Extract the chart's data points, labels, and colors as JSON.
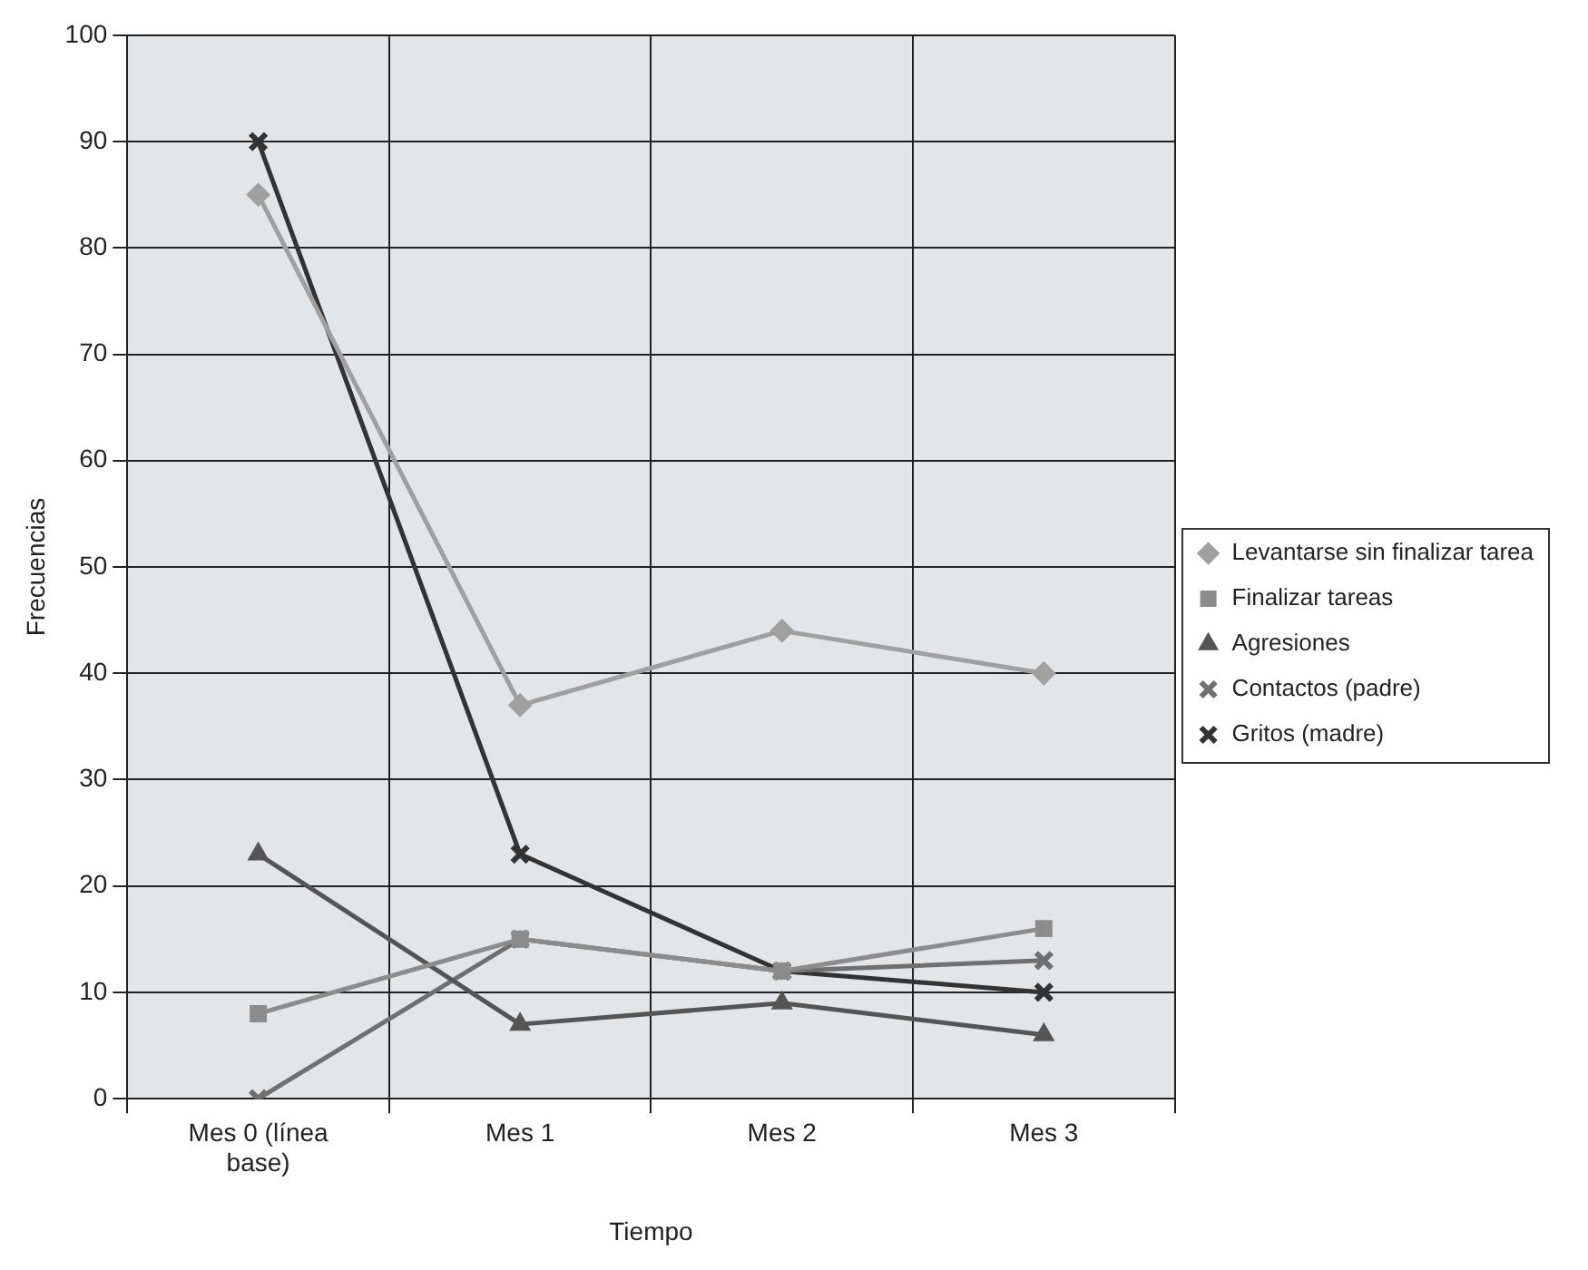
{
  "chart_data": {
    "type": "line",
    "xlabel": "Tiempo",
    "ylabel": "Frecuencias",
    "categories": [
      "Mes 0 (línea base)",
      "Mes 1",
      "Mes 2",
      "Mes 3"
    ],
    "series": [
      {
        "name": "Levantarse sin finalizar tarea",
        "color": "#a0a0a0",
        "marker": "diamond",
        "values": [
          85,
          37,
          44,
          40
        ]
      },
      {
        "name": "Finalizar tareas",
        "color": "#8c8c8c",
        "marker": "square",
        "values": [
          8,
          15,
          12,
          16
        ]
      },
      {
        "name": "Agresiones",
        "color": "#555555",
        "marker": "triangle",
        "values": [
          23,
          7,
          9,
          6
        ]
      },
      {
        "name": "Contactos (padre)",
        "color": "#707070",
        "marker": "cross",
        "values": [
          0,
          15,
          12,
          13
        ]
      },
      {
        "name": "Gritos (madre)",
        "color": "#333333",
        "marker": "cross",
        "values": [
          90,
          23,
          12,
          10
        ]
      }
    ],
    "ylim": [
      0,
      100
    ],
    "yticks": [
      0,
      10,
      20,
      30,
      40,
      50,
      60,
      70,
      80,
      90,
      100
    ],
    "grid": true,
    "legend": "right",
    "line_style": "solid"
  }
}
